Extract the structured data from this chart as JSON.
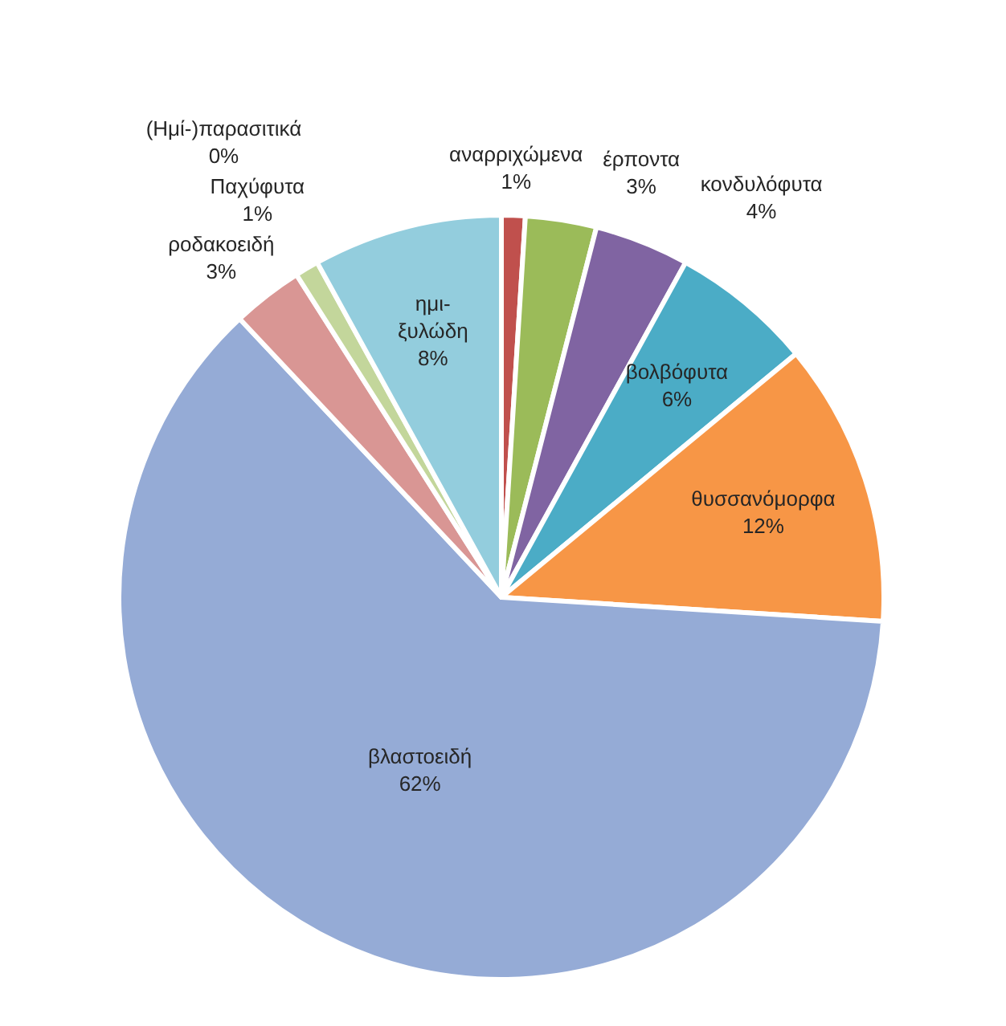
{
  "chart_data": {
    "type": "pie",
    "categories": [
      "αναρριχώμενα",
      "έρποντα",
      "κονδυλόφυτα",
      "βολβόφυτα",
      "θυσσανόμορφα",
      "βλαστοειδή",
      "ροδακοειδή",
      "Παχύφυτα",
      "(Ημί-)παρασιτικά",
      "ημι-ξυλώδη"
    ],
    "values": [
      1,
      3,
      4,
      6,
      12,
      62,
      3,
      1,
      0,
      8
    ],
    "value_labels": [
      "1%",
      "3%",
      "4%",
      "6%",
      "12%",
      "62%",
      "3%",
      "1%",
      "0%",
      "8%"
    ],
    "colors": [
      "#c0504d",
      "#9bbb59",
      "#8064a2",
      "#4bacc6",
      "#f79646",
      "#95abd6",
      "#d99694",
      "#c3d69b",
      "#b3a2c7",
      "#93cddd"
    ],
    "legend": false
  }
}
